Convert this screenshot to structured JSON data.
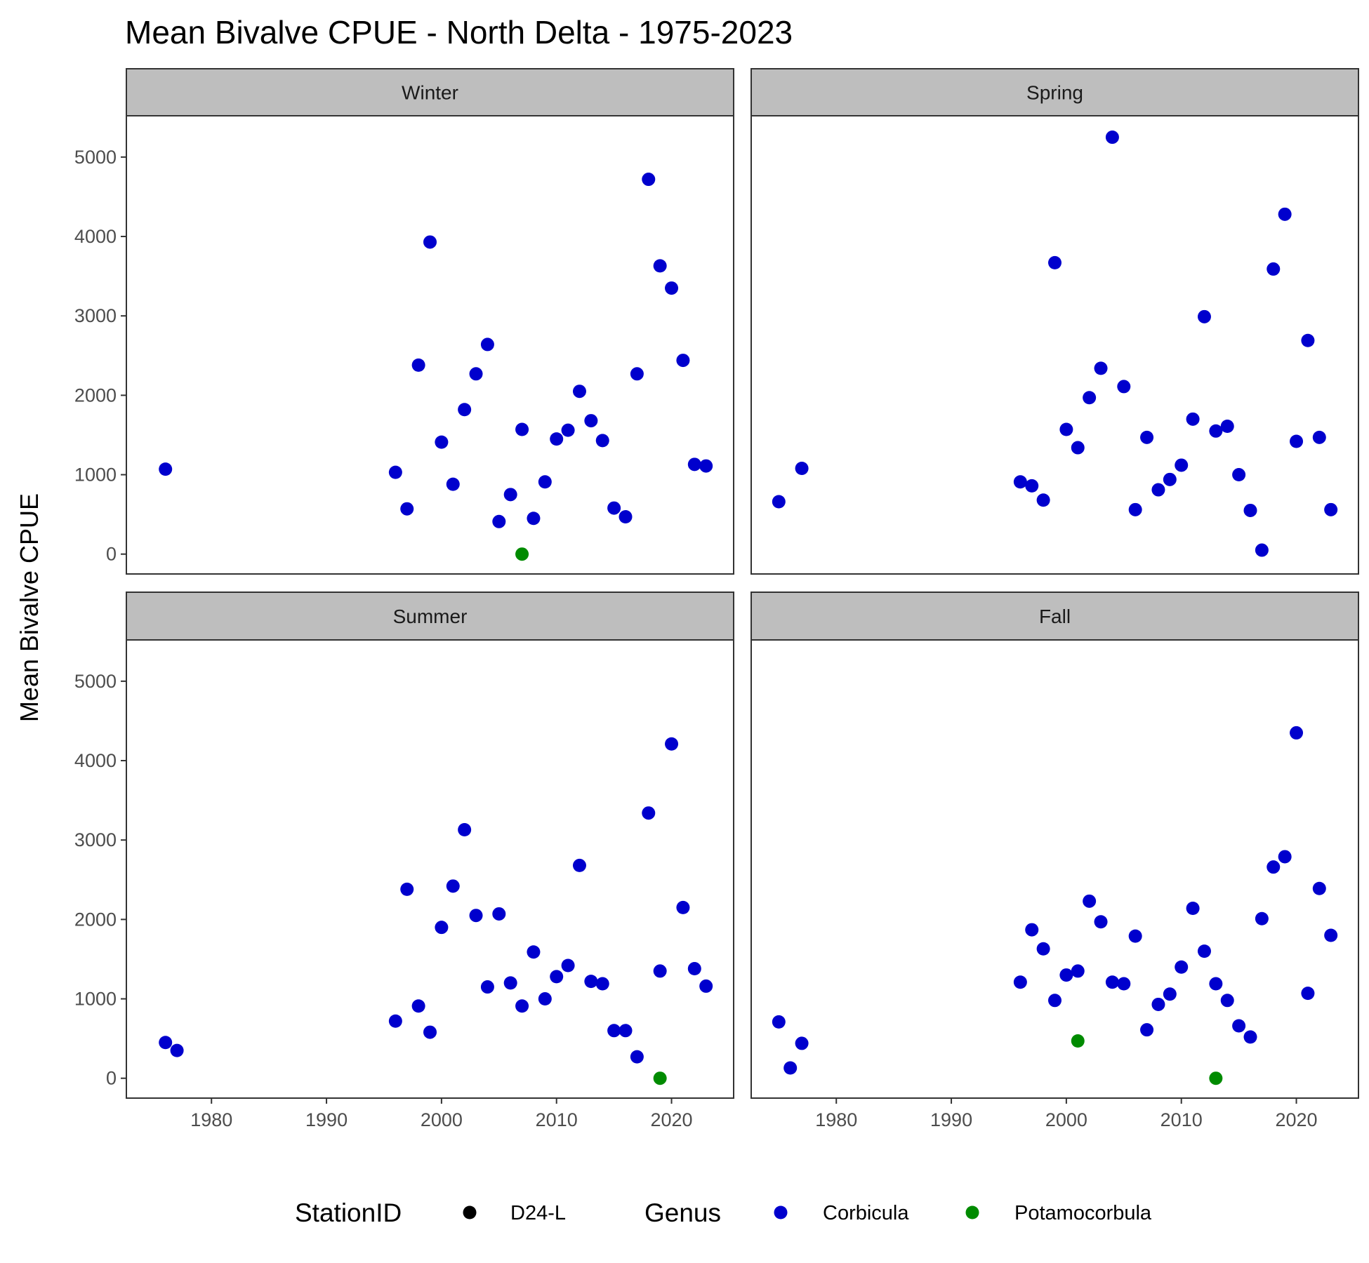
{
  "chart_data": {
    "type": "scatter",
    "title": "Mean Bivalve CPUE - North Delta - 1975-2023",
    "ylabel": "Mean Bivalve CPUE",
    "xlabel": "",
    "xlim": [
      1972.6,
      2025.4
    ],
    "ylim": [
      -250,
      5520
    ],
    "x_ticks": [
      1980,
      1990,
      2000,
      2010,
      2020
    ],
    "y_ticks": [
      0,
      1000,
      2000,
      3000,
      4000,
      5000
    ],
    "grid": false,
    "legend_position": "bottom",
    "legend": {
      "station_title": "StationID",
      "station_items": [
        "D24-L"
      ],
      "genus_title": "Genus",
      "genus_items": [
        "Corbicula",
        "Potamocorbula"
      ]
    },
    "colors": {
      "Corbicula": "#0000CD",
      "Potamocorbula": "#008B00"
    },
    "facets": [
      {
        "label": "Winter",
        "series": [
          {
            "name": "Corbicula",
            "points": [
              [
                1976,
                1070
              ],
              [
                1996,
                1030
              ],
              [
                1997,
                570
              ],
              [
                1998,
                2380
              ],
              [
                1999,
                3930
              ],
              [
                2000,
                1410
              ],
              [
                2001,
                880
              ],
              [
                2002,
                1820
              ],
              [
                2003,
                2270
              ],
              [
                2004,
                2640
              ],
              [
                2005,
                410
              ],
              [
                2006,
                750
              ],
              [
                2007,
                1570
              ],
              [
                2008,
                450
              ],
              [
                2009,
                910
              ],
              [
                2010,
                1450
              ],
              [
                2011,
                1560
              ],
              [
                2012,
                2050
              ],
              [
                2013,
                1680
              ],
              [
                2014,
                1430
              ],
              [
                2015,
                580
              ],
              [
                2016,
                470
              ],
              [
                2017,
                2270
              ],
              [
                2018,
                4720
              ],
              [
                2019,
                3630
              ],
              [
                2020,
                3350
              ],
              [
                2021,
                2440
              ],
              [
                2022,
                1130
              ],
              [
                2023,
                1110
              ]
            ]
          },
          {
            "name": "Potamocorbula",
            "points": [
              [
                2007,
                0
              ]
            ]
          }
        ]
      },
      {
        "label": "Spring",
        "series": [
          {
            "name": "Corbicula",
            "points": [
              [
                1975,
                660
              ],
              [
                1977,
                1080
              ],
              [
                1996,
                910
              ],
              [
                1997,
                860
              ],
              [
                1998,
                680
              ],
              [
                1999,
                3670
              ],
              [
                2000,
                1570
              ],
              [
                2001,
                1340
              ],
              [
                2002,
                1970
              ],
              [
                2003,
                2340
              ],
              [
                2004,
                5250
              ],
              [
                2005,
                2110
              ],
              [
                2006,
                560
              ],
              [
                2007,
                1470
              ],
              [
                2008,
                810
              ],
              [
                2009,
                940
              ],
              [
                2010,
                1120
              ],
              [
                2011,
                1700
              ],
              [
                2012,
                2990
              ],
              [
                2013,
                1550
              ],
              [
                2014,
                1610
              ],
              [
                2015,
                1000
              ],
              [
                2016,
                550
              ],
              [
                2017,
                50
              ],
              [
                2018,
                3590
              ],
              [
                2019,
                4280
              ],
              [
                2020,
                1420
              ],
              [
                2021,
                2690
              ],
              [
                2022,
                1470
              ],
              [
                2023,
                560
              ]
            ]
          },
          {
            "name": "Potamocorbula",
            "points": []
          }
        ]
      },
      {
        "label": "Summer",
        "series": [
          {
            "name": "Corbicula",
            "points": [
              [
                1976,
                450
              ],
              [
                1977,
                350
              ],
              [
                1996,
                720
              ],
              [
                1997,
                2380
              ],
              [
                1998,
                910
              ],
              [
                1999,
                580
              ],
              [
                2000,
                1900
              ],
              [
                2001,
                2420
              ],
              [
                2002,
                3130
              ],
              [
                2003,
                2050
              ],
              [
                2004,
                1150
              ],
              [
                2005,
                2070
              ],
              [
                2006,
                1200
              ],
              [
                2007,
                910
              ],
              [
                2008,
                1590
              ],
              [
                2009,
                1000
              ],
              [
                2010,
                1280
              ],
              [
                2011,
                1420
              ],
              [
                2012,
                2680
              ],
              [
                2013,
                1220
              ],
              [
                2014,
                1190
              ],
              [
                2015,
                600
              ],
              [
                2016,
                600
              ],
              [
                2017,
                270
              ],
              [
                2018,
                3340
              ],
              [
                2019,
                1350
              ],
              [
                2020,
                4210
              ],
              [
                2021,
                2150
              ],
              [
                2022,
                1380
              ],
              [
                2023,
                1160
              ]
            ]
          },
          {
            "name": "Potamocorbula",
            "points": [
              [
                2019,
                0
              ]
            ]
          }
        ]
      },
      {
        "label": "Fall",
        "series": [
          {
            "name": "Corbicula",
            "points": [
              [
                1975,
                710
              ],
              [
                1976,
                130
              ],
              [
                1977,
                440
              ],
              [
                1996,
                1210
              ],
              [
                1997,
                1870
              ],
              [
                1998,
                1630
              ],
              [
                1999,
                980
              ],
              [
                2000,
                1300
              ],
              [
                2001,
                1350
              ],
              [
                2002,
                2230
              ],
              [
                2003,
                1970
              ],
              [
                2004,
                1210
              ],
              [
                2005,
                1190
              ],
              [
                2006,
                1790
              ],
              [
                2007,
                610
              ],
              [
                2008,
                930
              ],
              [
                2009,
                1060
              ],
              [
                2010,
                1400
              ],
              [
                2011,
                2140
              ],
              [
                2012,
                1600
              ],
              [
                2013,
                1190
              ],
              [
                2014,
                980
              ],
              [
                2015,
                660
              ],
              [
                2016,
                520
              ],
              [
                2017,
                2010
              ],
              [
                2018,
                2660
              ],
              [
                2019,
                2790
              ],
              [
                2020,
                4350
              ],
              [
                2021,
                1070
              ],
              [
                2022,
                2390
              ],
              [
                2023,
                1800
              ]
            ]
          },
          {
            "name": "Potamocorbula",
            "points": [
              [
                2001,
                470
              ],
              [
                2013,
                0
              ]
            ]
          }
        ]
      }
    ]
  }
}
